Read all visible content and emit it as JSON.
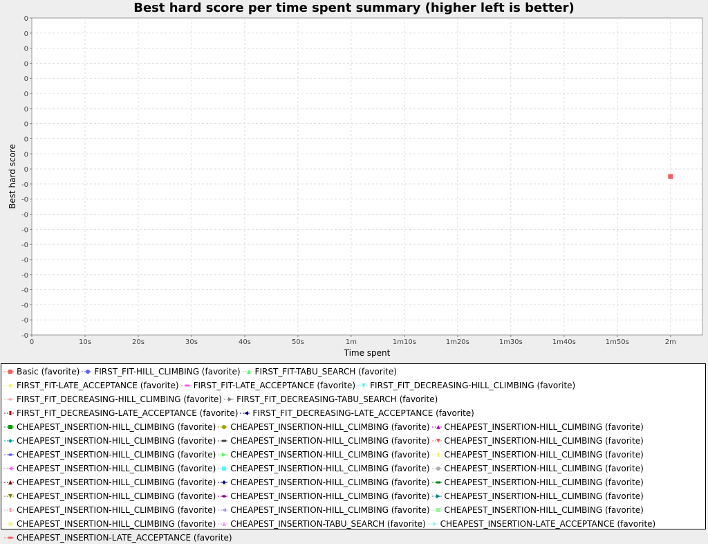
{
  "chart_data": {
    "type": "scatter",
    "title": "Best hard score per time spent summary (higher left is better)",
    "xlabel": "Time spent",
    "ylabel": "Best hard score",
    "x_ticks": [
      "0",
      "10s",
      "20s",
      "30s",
      "40s",
      "50s",
      "1m",
      "1m10s",
      "1m20s",
      "1m30s",
      "1m40s",
      "1m50s",
      "2m"
    ],
    "x_tick_values": [
      0,
      10,
      20,
      30,
      40,
      50,
      60,
      70,
      80,
      90,
      100,
      110,
      120
    ],
    "y_ticks": [
      "0",
      "0",
      "0",
      "0",
      "0",
      "0",
      "0",
      "0",
      "0",
      "0",
      "0",
      "-0",
      "-0",
      "-0",
      "-0",
      "-0",
      "-0",
      "-0",
      "-0",
      "-0",
      "-0",
      "-0"
    ],
    "xlim": [
      0,
      126
    ],
    "ylim": [
      -1,
      1
    ],
    "grid": true,
    "legend_position": "bottom",
    "series": [
      {
        "name": "Basic (favorite)",
        "color": "#f25c5c",
        "marker": "square",
        "points": [
          [
            120,
            0
          ]
        ]
      },
      {
        "name": "FIRST_FIT-HILL_CLIMBING (favorite)",
        "color": "#5f5ff2",
        "marker": "circle",
        "points": []
      },
      {
        "name": "FIRST_FIT-TABU_SEARCH (favorite)",
        "color": "#5ff25f",
        "marker": "triangle-up",
        "points": []
      },
      {
        "name": "FIRST_FIT-LATE_ACCEPTANCE (favorite)",
        "color": "#f2f25f",
        "marker": "diamond",
        "points": []
      },
      {
        "name": "FIRST_FIT-LATE_ACCEPTANCE (favorite)",
        "color": "#f25ff2",
        "marker": "hrect",
        "points": []
      },
      {
        "name": "FIRST_FIT_DECREASING-HILL_CLIMBING (favorite)",
        "color": "#5ff2f2",
        "marker": "triangle-down",
        "points": []
      },
      {
        "name": "FIRST_FIT_DECREASING-HILL_CLIMBING (favorite)",
        "color": "#f2b0b0",
        "marker": "ellipse",
        "points": []
      },
      {
        "name": "FIRST_FIT_DECREASING-TABU_SEARCH (favorite)",
        "color": "#808080",
        "marker": "triangle-right",
        "points": []
      },
      {
        "name": "FIRST_FIT_DECREASING-LATE_ACCEPTANCE (favorite)",
        "color": "#a00000",
        "marker": "vrect",
        "points": []
      },
      {
        "name": "FIRST_FIT_DECREASING-LATE_ACCEPTANCE (favorite)",
        "color": "#000080",
        "marker": "triangle-left",
        "points": []
      },
      {
        "name": "CHEAPEST_INSERTION-HILL_CLIMBING (favorite)",
        "color": "#00a000",
        "marker": "square",
        "points": []
      },
      {
        "name": "CHEAPEST_INSERTION-HILL_CLIMBING (favorite)",
        "color": "#a0a000",
        "marker": "circle",
        "points": []
      },
      {
        "name": "CHEAPEST_INSERTION-HILL_CLIMBING (favorite)",
        "color": "#c000c0",
        "marker": "triangle-up",
        "points": []
      },
      {
        "name": "CHEAPEST_INSERTION-HILL_CLIMBING (favorite)",
        "color": "#00a0a0",
        "marker": "diamond",
        "points": []
      },
      {
        "name": "CHEAPEST_INSERTION-HILL_CLIMBING (favorite)",
        "color": "#404040",
        "marker": "hrect",
        "points": []
      },
      {
        "name": "CHEAPEST_INSERTION-HILL_CLIMBING (favorite)",
        "color": "#f25c5c",
        "marker": "triangle-down",
        "points": []
      },
      {
        "name": "CHEAPEST_INSERTION-HILL_CLIMBING (favorite)",
        "color": "#5f5ff2",
        "marker": "ellipse",
        "points": []
      },
      {
        "name": "CHEAPEST_INSERTION-HILL_CLIMBING (favorite)",
        "color": "#5ff25f",
        "marker": "triangle-right",
        "points": []
      },
      {
        "name": "CHEAPEST_INSERTION-HILL_CLIMBING (favorite)",
        "color": "#f2f25f",
        "marker": "vrect",
        "points": []
      },
      {
        "name": "CHEAPEST_INSERTION-HILL_CLIMBING (favorite)",
        "color": "#f25ff2",
        "marker": "triangle-left",
        "points": []
      },
      {
        "name": "CHEAPEST_INSERTION-HILL_CLIMBING (favorite)",
        "color": "#5ff2f2",
        "marker": "square",
        "points": []
      },
      {
        "name": "CHEAPEST_INSERTION-HILL_CLIMBING (favorite)",
        "color": "#b0b0b0",
        "marker": "circle",
        "points": []
      },
      {
        "name": "CHEAPEST_INSERTION-HILL_CLIMBING (favorite)",
        "color": "#800000",
        "marker": "triangle-up",
        "points": []
      },
      {
        "name": "CHEAPEST_INSERTION-HILL_CLIMBING (favorite)",
        "color": "#000080",
        "marker": "diamond",
        "points": []
      },
      {
        "name": "CHEAPEST_INSERTION-HILL_CLIMBING (favorite)",
        "color": "#008000",
        "marker": "hrect",
        "points": []
      },
      {
        "name": "CHEAPEST_INSERTION-HILL_CLIMBING (favorite)",
        "color": "#808000",
        "marker": "triangle-down",
        "points": []
      },
      {
        "name": "CHEAPEST_INSERTION-HILL_CLIMBING (favorite)",
        "color": "#800080",
        "marker": "ellipse",
        "points": []
      },
      {
        "name": "CHEAPEST_INSERTION-HILL_CLIMBING (favorite)",
        "color": "#008080",
        "marker": "triangle-right",
        "points": []
      },
      {
        "name": "CHEAPEST_INSERTION-HILL_CLIMBING (favorite)",
        "color": "#f2a0a0",
        "marker": "vrect",
        "points": []
      },
      {
        "name": "CHEAPEST_INSERTION-HILL_CLIMBING (favorite)",
        "color": "#a0a0f2",
        "marker": "triangle-left",
        "points": []
      },
      {
        "name": "CHEAPEST_INSERTION-HILL_CLIMBING (favorite)",
        "color": "#a0f2a0",
        "marker": "square",
        "points": []
      },
      {
        "name": "CHEAPEST_INSERTION-HILL_CLIMBING (favorite)",
        "color": "#f2f2a0",
        "marker": "circle",
        "points": []
      },
      {
        "name": "CHEAPEST_INSERTION-TABU_SEARCH (favorite)",
        "color": "#f2a0f2",
        "marker": "triangle-up",
        "points": []
      },
      {
        "name": "CHEAPEST_INSERTION-LATE_ACCEPTANCE (favorite)",
        "color": "#a0f2f2",
        "marker": "diamond",
        "points": []
      },
      {
        "name": "CHEAPEST_INSERTION-LATE_ACCEPTANCE (favorite)",
        "color": "#f25c5c",
        "marker": "hrect",
        "points": []
      }
    ],
    "legend_rows": [
      3,
      3,
      2,
      2,
      3,
      3,
      3,
      3,
      3,
      3,
      3,
      3,
      3
    ]
  }
}
